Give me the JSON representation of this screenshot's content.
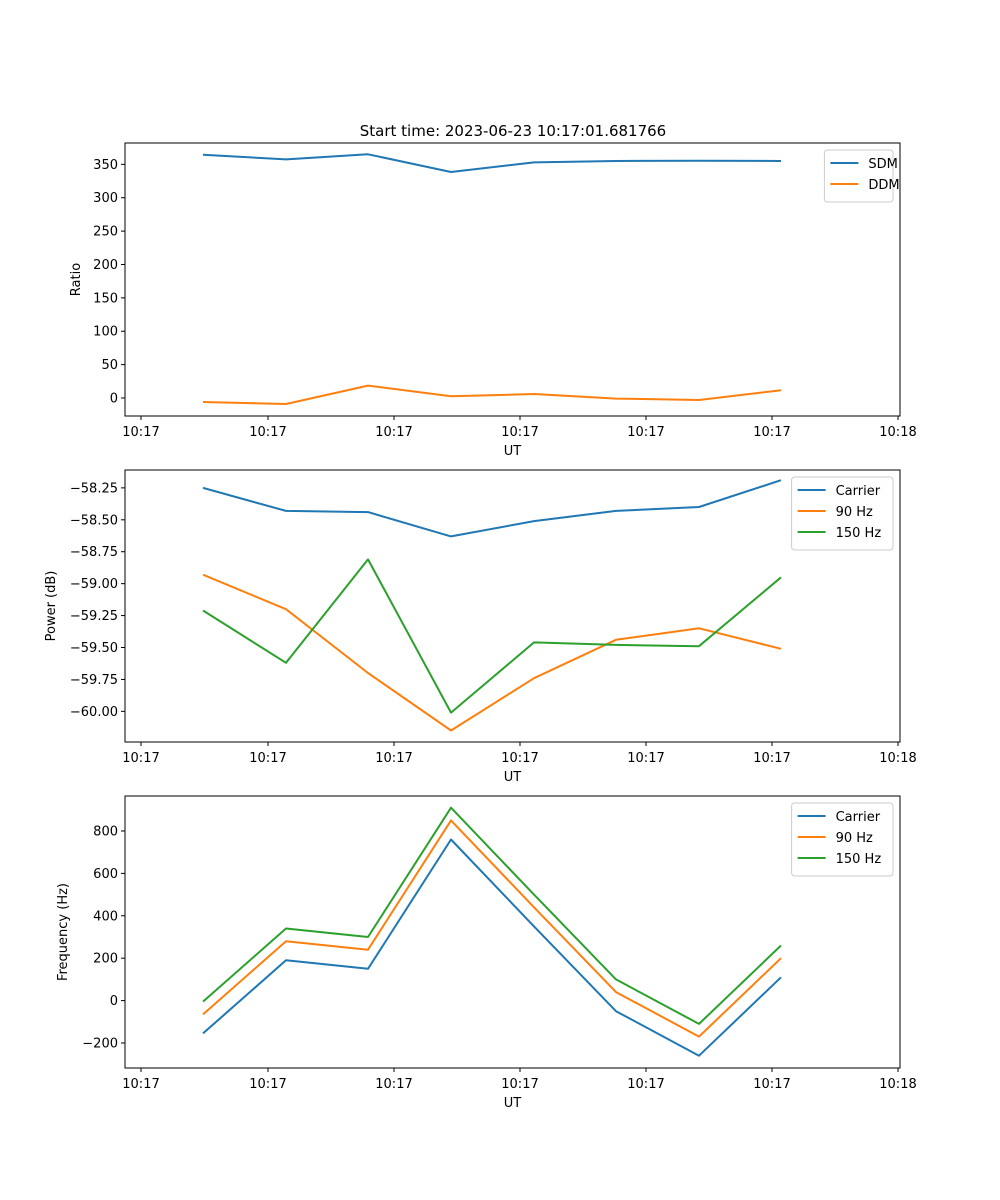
{
  "figure_title": "Start time: 2023-06-23 10:17:01.681766",
  "chart_data": [
    {
      "type": "line",
      "xlabel": "UT",
      "ylabel": "Ratio",
      "x_tick_labels": [
        "10:17",
        "10:17",
        "10:17",
        "10:17",
        "10:17",
        "10:17",
        "10:17",
        "10:18"
      ],
      "y_ticks": [
        0,
        50,
        100,
        150,
        200,
        250,
        300,
        350
      ],
      "ylim": [
        -27,
        382
      ],
      "legend_position": "upper-right",
      "series": [
        {
          "name": "SDM",
          "color": "#1f77b4",
          "values": [
            364.5,
            357.5,
            365,
            338.5,
            353,
            355,
            355.5,
            355
          ]
        },
        {
          "name": "DDM",
          "color": "#ff7f0e",
          "values": [
            -6,
            -9,
            18.5,
            2.5,
            6,
            -1,
            -3,
            11.5
          ]
        }
      ]
    },
    {
      "type": "line",
      "xlabel": "UT",
      "ylabel": "Power (dB)",
      "x_tick_labels": [
        "10:17",
        "10:17",
        "10:17",
        "10:17",
        "10:17",
        "10:17",
        "10:17",
        "10:18"
      ],
      "y_ticks": [
        -60.0,
        -59.75,
        -59.5,
        -59.25,
        -59.0,
        -58.75,
        -58.5,
        -58.25
      ],
      "y_tick_labels": [
        "−60.00",
        "−59.75",
        "−59.50",
        "−59.25",
        "−59.00",
        "−58.75",
        "−58.50",
        "−58.25"
      ],
      "ylim": [
        -60.24,
        -58.11
      ],
      "legend_position": "upper-right",
      "series": [
        {
          "name": "Carrier",
          "color": "#1f77b4",
          "values": [
            -58.25,
            -58.43,
            -58.44,
            -58.63,
            -58.51,
            -58.43,
            -58.4,
            -58.19
          ]
        },
        {
          "name": "90 Hz",
          "color": "#ff7f0e",
          "values": [
            -58.93,
            -59.2,
            -59.7,
            -60.15,
            -59.74,
            -59.44,
            -59.35,
            -59.51
          ]
        },
        {
          "name": "150 Hz",
          "color": "#2ca02c",
          "values": [
            -59.21,
            -59.62,
            -58.81,
            -60.01,
            -59.46,
            -59.48,
            -59.49,
            -58.95
          ]
        }
      ]
    },
    {
      "type": "line",
      "xlabel": "UT",
      "ylabel": "Frequency (Hz)",
      "x_tick_labels": [
        "10:17",
        "10:17",
        "10:17",
        "10:17",
        "10:17",
        "10:17",
        "10:17",
        "10:18"
      ],
      "y_ticks": [
        -200,
        0,
        200,
        400,
        600,
        800
      ],
      "y_tick_labels": [
        "−200",
        "0",
        "200",
        "400",
        "600",
        "800"
      ],
      "ylim": [
        -318,
        965
      ],
      "legend_position": "upper-right",
      "series": [
        {
          "name": "Carrier",
          "color": "#1f77b4",
          "values": [
            -155,
            190,
            150,
            760,
            350,
            -50,
            -260,
            110
          ]
        },
        {
          "name": "90 Hz",
          "color": "#ff7f0e",
          "values": [
            -65,
            280,
            240,
            850,
            440,
            40,
            -170,
            200
          ]
        },
        {
          "name": "150 Hz",
          "color": "#2ca02c",
          "values": [
            -5,
            340,
            300,
            910,
            500,
            100,
            -110,
            260
          ]
        }
      ]
    }
  ]
}
